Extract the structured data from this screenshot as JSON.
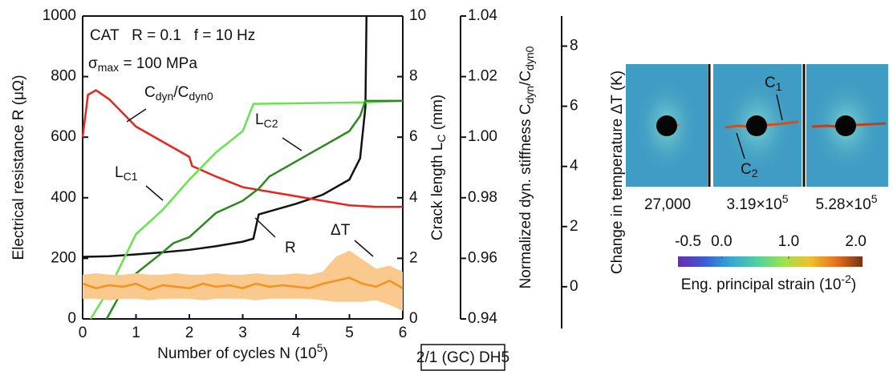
{
  "chart_data": {
    "type": "line",
    "annotations": [
      "CAT   R = 0.1   f = 10 Hz",
      [
        "σ",
        {
          "sub": "max"
        },
        " = 100 MPa"
      ],
      [
        "C",
        {
          "sub": "dyn"
        },
        "/C",
        {
          "sub": "dyn0"
        }
      ],
      [
        "L",
        {
          "sub": "C1"
        }
      ],
      [
        "L",
        {
          "sub": "C2"
        }
      ],
      "R",
      "ΔT"
    ],
    "x_label": [
      "Number of cycles N (10",
      {
        "sup": "5"
      },
      ")"
    ],
    "y_label": "Electrical resistance R (μΩ)",
    "y2_label": [
      "Crack length L",
      {
        "sub": "C"
      },
      " (mm)"
    ],
    "y3_label": [
      "Normalized dyn. stiffness C",
      {
        "sub": "dyn"
      },
      "/C",
      {
        "sub": "dyn0"
      }
    ],
    "y4_label": "Change in temperature ΔT (K)",
    "specimen": "2/1 (GC) DH5",
    "xlim": [
      0,
      6
    ],
    "xticks": [
      0,
      1,
      2,
      3,
      4,
      5,
      6
    ],
    "ylim": [
      0,
      1000
    ],
    "yticks": [
      0,
      200,
      400,
      600,
      800,
      1000
    ],
    "y2lim": [
      0,
      10
    ],
    "y2ticks": [
      0,
      2,
      4,
      6,
      8,
      10
    ],
    "y3lim": [
      0.94,
      1.04
    ],
    "y3ticks": [
      0.94,
      0.96,
      0.98,
      {
        "value": 1,
        "label": "1.00"
      },
      1.02,
      1.04
    ],
    "y4lim": [
      -1.07,
      9.0
    ],
    "y4ticks": [
      0,
      2,
      4,
      6,
      8
    ],
    "series": [
      {
        "axis": "y",
        "color": "#111111",
        "x": [
          0,
          0.5,
          1,
          1.5,
          2,
          2.5,
          3,
          3.2,
          3.3,
          3.5,
          4,
          4.5,
          5,
          5.2,
          5.3,
          5.32
        ],
        "values": [
          205,
          207,
          213,
          220,
          228,
          240,
          255,
          265,
          345,
          355,
          380,
          410,
          460,
          530,
          700,
          1000
        ]
      },
      {
        "axis": "y3",
        "color": "#e8251c",
        "x": [
          0,
          0.1,
          0.25,
          0.5,
          1,
          1.5,
          2,
          2.05,
          2.5,
          3,
          3.5,
          4,
          4.5,
          5,
          5.5,
          6
        ],
        "values": [
          1.0,
          1.014,
          1.0155,
          1.0125,
          1.0035,
          0.9985,
          0.9935,
          0.9905,
          0.987,
          0.9835,
          0.982,
          0.9805,
          0.979,
          0.9775,
          0.977,
          0.977
        ]
      },
      {
        "axis": "y2",
        "color": "#66e34d",
        "x": [
          0.15,
          0.5,
          1,
          1.5,
          2,
          2.5,
          3,
          3.2,
          5.3,
          6
        ],
        "values": [
          0,
          1,
          2.8,
          3.6,
          4.6,
          5.5,
          6.2,
          7.1,
          7.15,
          7.2
        ]
      },
      {
        "axis": "y2",
        "color": "#2a8a1e",
        "x": [
          0.45,
          0.7,
          1,
          1.5,
          1.7,
          2,
          2.5,
          3,
          3.3,
          3.5,
          4,
          4.5,
          5,
          5.2,
          5.3,
          6
        ],
        "values": [
          0,
          0.8,
          1.5,
          2.2,
          2.5,
          2.7,
          3.5,
          3.9,
          4.3,
          4.7,
          5.2,
          5.7,
          6.2,
          6.7,
          7.2,
          7.2
        ]
      },
      {
        "axis": "y4",
        "color": "#f5921e",
        "band_color": "#f9c98e",
        "x": [
          0,
          0.25,
          0.5,
          0.75,
          1,
          1.25,
          1.5,
          1.75,
          2,
          2.25,
          2.5,
          2.75,
          3,
          3.25,
          3.5,
          3.75,
          4,
          4.25,
          4.5,
          4.75,
          5,
          5.25,
          5.5,
          5.75,
          6
        ],
        "values": [
          0.1,
          -0.05,
          0.05,
          0,
          0.1,
          -0.1,
          0.05,
          0,
          -0.05,
          0.1,
          0,
          0.05,
          -0.05,
          0.1,
          0,
          0.05,
          0,
          -0.05,
          0.1,
          0.2,
          0.3,
          0.1,
          0,
          0.2,
          -0.05
        ],
        "lower": [
          -0.4,
          -0.4,
          -0.45,
          -0.4,
          -0.4,
          -0.45,
          -0.4,
          -0.4,
          -0.4,
          -0.45,
          -0.4,
          -0.4,
          -0.4,
          -0.45,
          -0.4,
          -0.4,
          -0.4,
          -0.4,
          -0.45,
          -0.5,
          -0.5,
          -0.5,
          -0.45,
          -0.6,
          -0.8
        ],
        "upper": [
          0.4,
          0.45,
          0.4,
          0.4,
          0.45,
          0.4,
          0.4,
          0.45,
          0.4,
          0.4,
          0.45,
          0.4,
          0.4,
          0.45,
          0.4,
          0.4,
          0.45,
          0.4,
          0.5,
          1.0,
          1.2,
          0.9,
          0.6,
          0.7,
          0.5
        ]
      }
    ]
  },
  "panels": {
    "images": [
      [
        "27,000"
      ],
      [
        "3.19×10",
        {
          "sup": "5"
        }
      ],
      [
        "5.28×10",
        {
          "sup": "5"
        }
      ]
    ],
    "crack_labels": [
      [
        "C",
        {
          "sub": "1"
        }
      ],
      [
        "C",
        {
          "sub": "2"
        }
      ]
    ],
    "colorbar": {
      "clim": [
        -0.65,
        2.1
      ],
      "ticks": [
        -0.5,
        {
          "value": 0,
          "label": "0.0"
        },
        {
          "value": 1,
          "label": "1.0"
        },
        {
          "value": 2,
          "label": "2.0"
        }
      ],
      "colors": [
        "#6a2bb5",
        "#3b5bd9",
        "#35a7d6",
        "#4fd1a0",
        "#9be34a",
        "#f0c030",
        "#e8701c",
        "#7a3010"
      ],
      "label": [
        "Eng. principal strain (10",
        {
          "sup": "-2"
        },
        ")"
      ]
    }
  }
}
